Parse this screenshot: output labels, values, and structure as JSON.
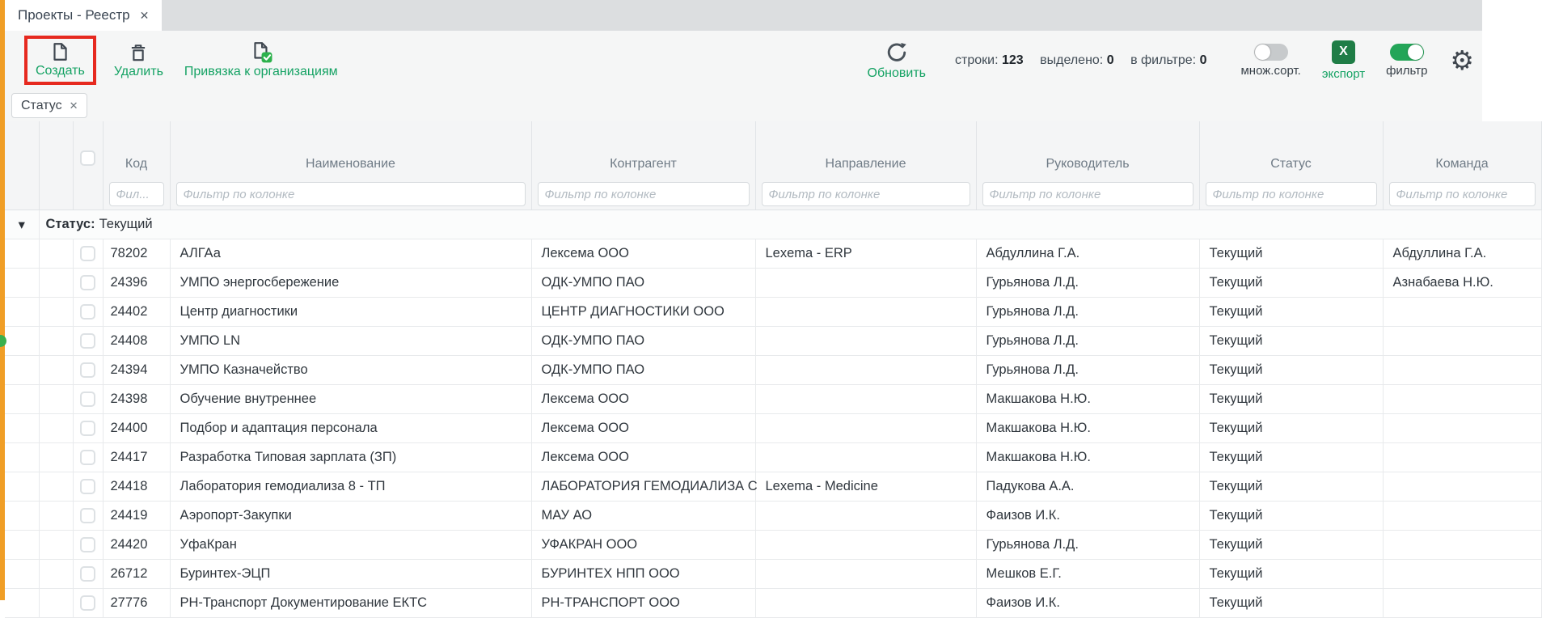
{
  "tab": {
    "title": "Проекты - Реестр",
    "close_glyph": "✕"
  },
  "toolbar": {
    "create_label": "Создать",
    "delete_label": "Удалить",
    "link_orgs_label": "Привязка к организациям",
    "refresh_label": "Обновить",
    "stats": {
      "rows_label": "строки:",
      "rows_value": "123",
      "selected_label": "выделено:",
      "selected_value": "0",
      "filtered_label": "в фильтре:",
      "filtered_value": "0"
    },
    "multisort_label": "множ.сорт.",
    "export_label": "экспорт",
    "excel_letter": "X",
    "filter_label": "фильтр",
    "gear_glyph": "⚙"
  },
  "groupbar": {
    "chip_label": "Статус",
    "chip_remove_glyph": "✕"
  },
  "table": {
    "columns": [
      "Код",
      "Наименование",
      "Контрагент",
      "Направление",
      "Руководитель",
      "Статус",
      "Команда"
    ],
    "filter_placeholder": "Фильтр по колонке",
    "filter_placeholder_short": "Фил...",
    "group": {
      "label": "Статус:",
      "value": "Текущий",
      "collapse_glyph": "▾"
    },
    "rows": [
      {
        "code": "78202",
        "name": "АЛГАа",
        "counterparty": "Лексема ООО",
        "direction": "Lexema - ERP",
        "manager": "Абдуллина Г.А.",
        "status": "Текущий",
        "team": "Абдуллина Г.А."
      },
      {
        "code": "24396",
        "name": "УМПО энергосбережение",
        "counterparty": "ОДК-УМПО ПАО",
        "direction": "",
        "manager": "Гурьянова Л.Д.",
        "status": "Текущий",
        "team": "Азнабаева Н.Ю."
      },
      {
        "code": "24402",
        "name": "Центр диагностики",
        "counterparty": "ЦЕНТР ДИАГНОСТИКИ ООО",
        "direction": "",
        "manager": "Гурьянова Л.Д.",
        "status": "Текущий",
        "team": ""
      },
      {
        "code": "24408",
        "name": "УМПО LN",
        "counterparty": "ОДК-УМПО ПАО",
        "direction": "",
        "manager": "Гурьянова Л.Д.",
        "status": "Текущий",
        "team": ""
      },
      {
        "code": "24394",
        "name": "УМПО Казначейство",
        "counterparty": "ОДК-УМПО ПАО",
        "direction": "",
        "manager": "Гурьянова Л.Д.",
        "status": "Текущий",
        "team": ""
      },
      {
        "code": "24398",
        "name": "Обучение внутреннее",
        "counterparty": "Лексема ООО",
        "direction": "",
        "manager": "Макшакова Н.Ю.",
        "status": "Текущий",
        "team": ""
      },
      {
        "code": "24400",
        "name": "Подбор и адаптация персонала",
        "counterparty": "Лексема ООО",
        "direction": "",
        "manager": "Макшакова Н.Ю.",
        "status": "Текущий",
        "team": ""
      },
      {
        "code": "24417",
        "name": "Разработка Типовая зарплата (ЗП)",
        "counterparty": "Лексема ООО",
        "direction": "",
        "manager": "Макшакова Н.Ю.",
        "status": "Текущий",
        "team": ""
      },
      {
        "code": "24418",
        "name": "Лаборатория гемодиализа 8 - ТП",
        "counterparty": "ЛАБОРАТОРИЯ ГЕМОДИАЛИЗА С",
        "direction": "Lexema - Medicine",
        "manager": "Падукова А.А.",
        "status": "Текущий",
        "team": ""
      },
      {
        "code": "24419",
        "name": "Аэропорт-Закупки",
        "counterparty": "МАУ АО",
        "direction": "",
        "manager": "Фаизов И.К.",
        "status": "Текущий",
        "team": ""
      },
      {
        "code": "24420",
        "name": "УфаКран",
        "counterparty": "УФАКРАН ООО",
        "direction": "",
        "manager": "Гурьянова Л.Д.",
        "status": "Текущий",
        "team": ""
      },
      {
        "code": "26712",
        "name": "Буринтех-ЭЦП",
        "counterparty": "БУРИНТЕХ НПП ООО",
        "direction": "",
        "manager": "Мешков Е.Г.",
        "status": "Текущий",
        "team": ""
      },
      {
        "code": "27776",
        "name": "РН-Транспорт Документирование ЕКТС",
        "counterparty": "РН-ТРАНСПОРТ ООО",
        "direction": "",
        "manager": "Фаизов И.К.",
        "status": "Текущий",
        "team": ""
      }
    ]
  },
  "colors": {
    "accent_green": "#14a263",
    "toggle_on_green": "#23a558",
    "excel_green": "#1f7d46",
    "highlight_red": "#e6291f",
    "left_strip_orange": "#f09e26"
  }
}
